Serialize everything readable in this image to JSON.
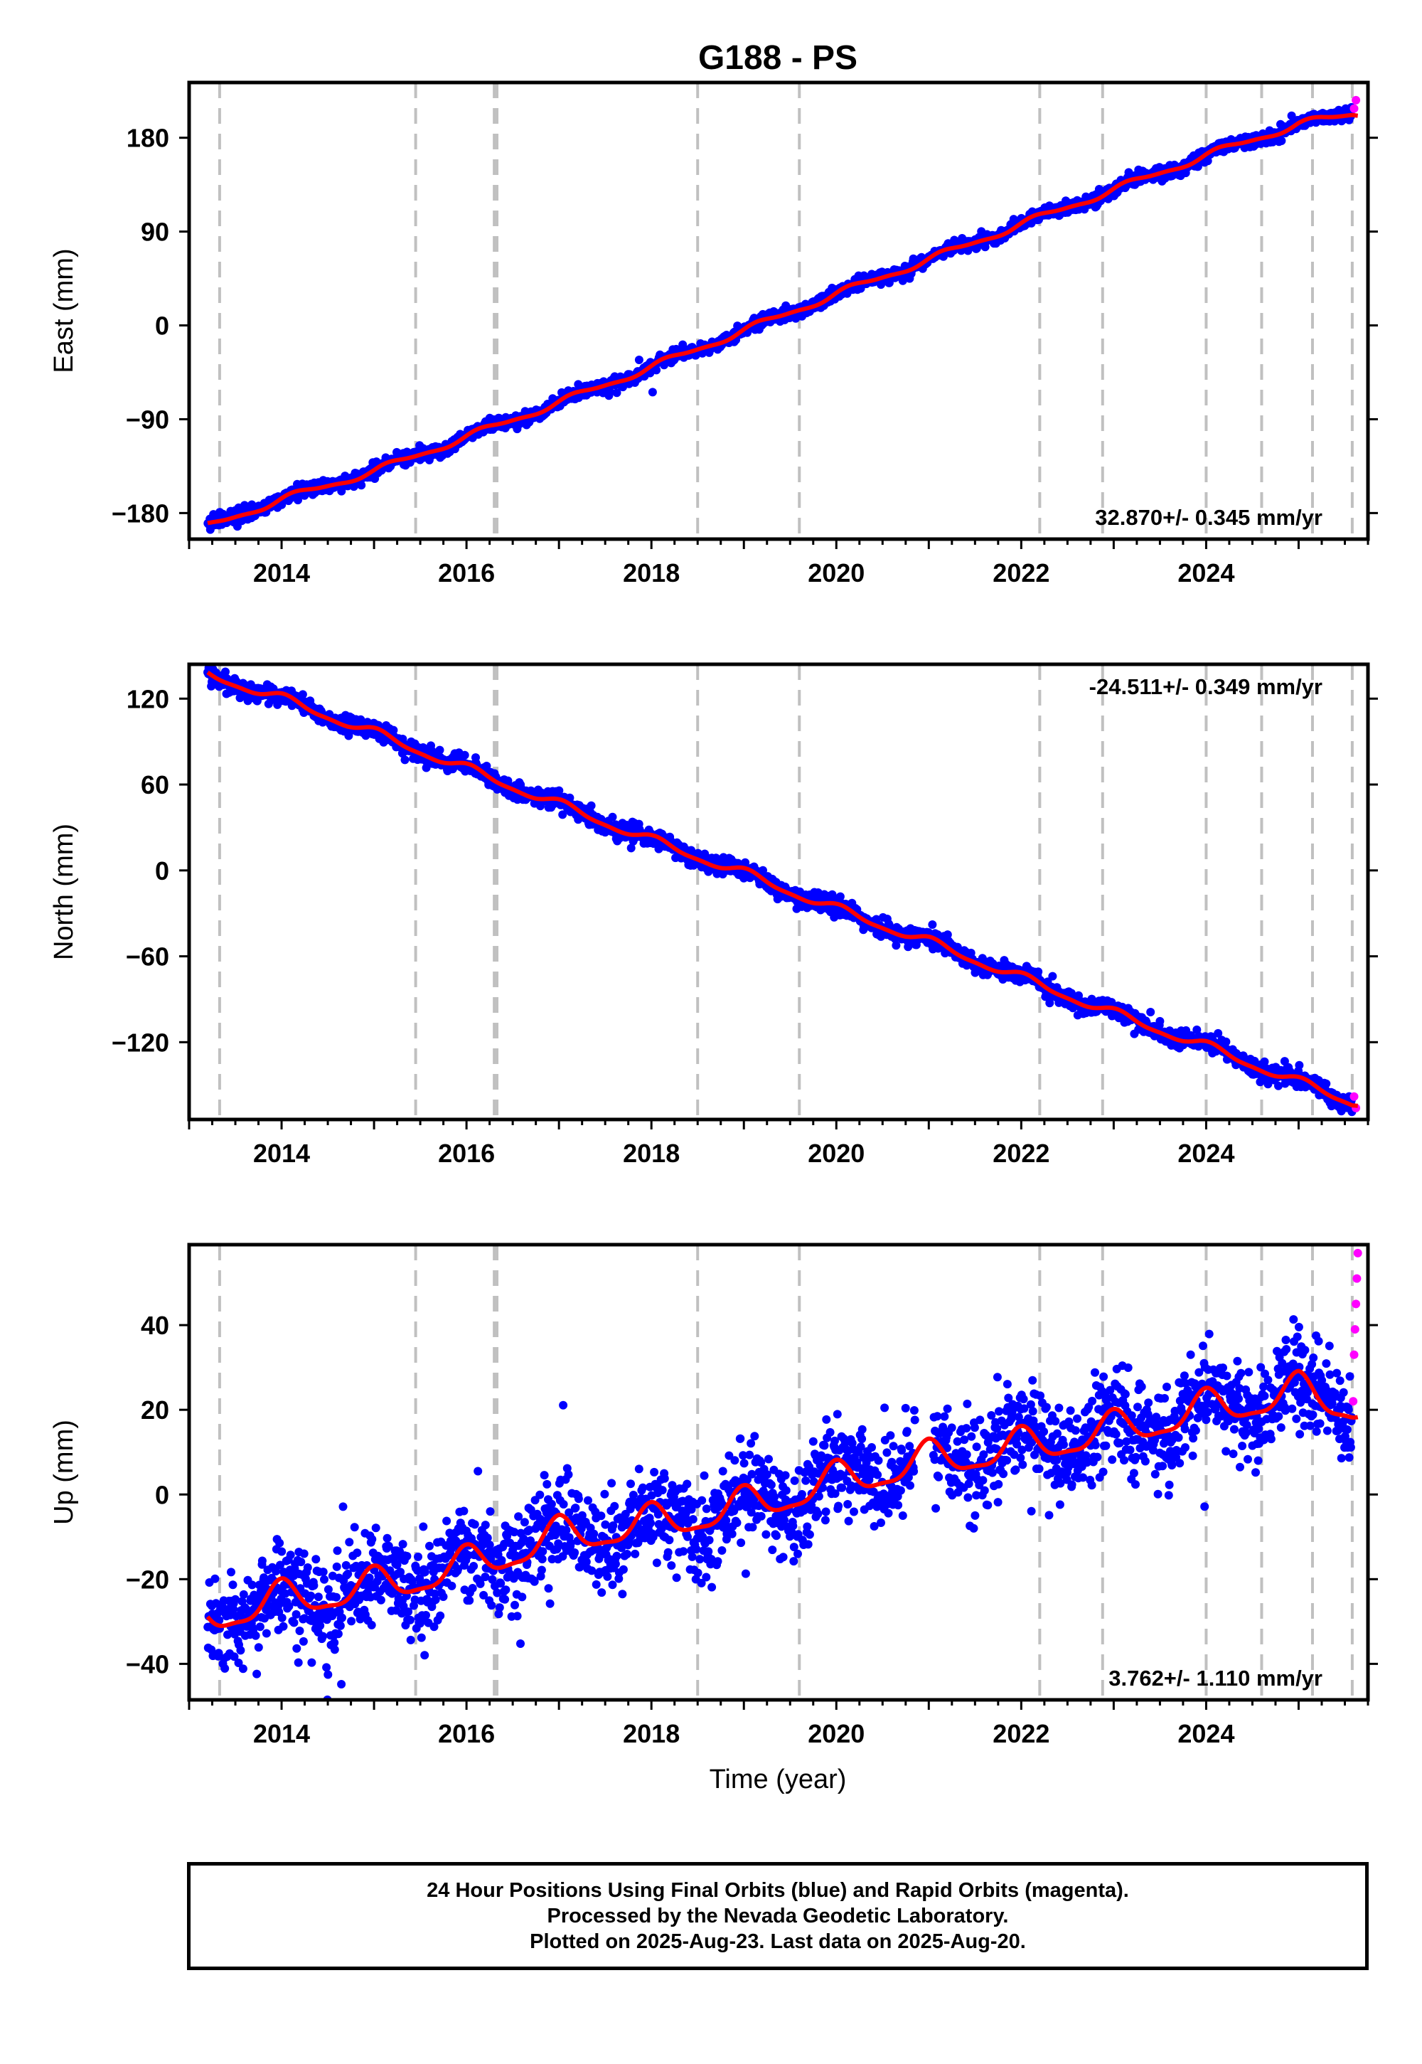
{
  "title": "G188 - PS",
  "xlabel": "Time (year)",
  "colors": {
    "final_orbits": "#0000ff",
    "rapid_orbits": "#ff00ff",
    "model_fit": "#ff0000",
    "event_lines": "#c0c0c0"
  },
  "footer": {
    "line1": "24 Hour Positions Using Final Orbits (blue) and Rapid Orbits (magenta).",
    "line2": "Processed by the Nevada Geodetic Laboratory.",
    "line3": "Plotted on 2025-Aug-23. Last data on 2025-Aug-20."
  },
  "chart_data": [
    {
      "type": "scatter",
      "ylabel": "East (mm)",
      "rate_label": "32.870+/- 0.345 mm/yr",
      "rate_label_position": "bottom-right",
      "x_ticks": [
        2014,
        2016,
        2018,
        2020,
        2022,
        2024
      ],
      "y_ticks": [
        -180,
        -90,
        0,
        90,
        180
      ],
      "xlim": [
        2013.0,
        2025.75
      ],
      "ylim": [
        -205,
        233
      ],
      "event_lines": [
        2013.33,
        2015.45,
        2016.3,
        2016.33,
        2018.5,
        2019.6,
        2022.2,
        2022.88,
        2024.0,
        2024.6,
        2025.15,
        2025.58
      ],
      "data_span": [
        2013.2,
        2025.58
      ],
      "rapid_span": [
        2025.58,
        2025.64
      ],
      "series": [
        {
          "name": "Final Orbits",
          "x": [
            2013.2,
            2014.0,
            2015.0,
            2016.0,
            2017.0,
            2018.0,
            2019.0,
            2020.0,
            2021.0,
            2022.0,
            2023.0,
            2024.0,
            2025.0,
            2025.58
          ],
          "y": [
            -193,
            -167,
            -140,
            -107,
            -74,
            -40,
            -5,
            30,
            63,
            97,
            130,
            163,
            193,
            203
          ]
        },
        {
          "name": "Rapid Orbits",
          "x": [
            2025.6,
            2025.62
          ],
          "y": [
            208,
            216
          ]
        }
      ],
      "fit": {
        "x": [
          2013.2,
          2025.64
        ],
        "y": [
          -193,
          206
        ],
        "annual_amplitude": 3,
        "semiannual_amplitude": 1,
        "annual_phase": 0.3
      },
      "scatter_sd": 3
    },
    {
      "type": "scatter",
      "ylabel": "North (mm)",
      "rate_label": "-24.511+/- 0.349 mm/yr",
      "rate_label_position": "top-right",
      "x_ticks": [
        2014,
        2016,
        2018,
        2020,
        2022,
        2024
      ],
      "y_ticks": [
        -120,
        -60,
        0,
        60,
        120
      ],
      "xlim": [
        2013.0,
        2025.75
      ],
      "ylim": [
        -174,
        144
      ],
      "event_lines": [
        2013.33,
        2015.45,
        2016.3,
        2016.33,
        2018.5,
        2019.6,
        2022.2,
        2022.88,
        2024.0,
        2024.6,
        2025.15,
        2025.58
      ],
      "data_span": [
        2013.2,
        2025.58
      ],
      "rapid_span": [
        2025.58,
        2025.64
      ],
      "series": [
        {
          "name": "Final Orbits",
          "x": [
            2013.2,
            2014.0,
            2015.0,
            2016.0,
            2017.0,
            2018.0,
            2019.0,
            2020.0,
            2021.0,
            2022.0,
            2023.0,
            2024.0,
            2025.0,
            2025.58
          ],
          "y": [
            137,
            120,
            96,
            71,
            46,
            21,
            -2,
            -27,
            -50,
            -75,
            -100,
            -123,
            -148,
            -162
          ]
        },
        {
          "name": "Rapid Orbits",
          "x": [
            2025.6,
            2025.62
          ],
          "y": [
            -158,
            -166
          ]
        }
      ],
      "fit": {
        "x": [
          2013.2,
          2025.64
        ],
        "y": [
          137,
          -164
        ],
        "annual_amplitude": 3,
        "semiannual_amplitude": 1,
        "annual_phase": 1.2
      },
      "scatter_sd": 3
    },
    {
      "type": "scatter",
      "ylabel": "Up (mm)",
      "rate_label": "3.762+/- 1.110 mm/yr",
      "rate_label_position": "bottom-right",
      "x_ticks": [
        2014,
        2016,
        2018,
        2020,
        2022,
        2024
      ],
      "y_ticks": [
        -40,
        -20,
        0,
        20,
        40
      ],
      "xlim": [
        2013.0,
        2025.75
      ],
      "ylim": [
        -48.5,
        59
      ],
      "event_lines": [
        2013.33,
        2015.45,
        2016.3,
        2016.33,
        2018.5,
        2019.6,
        2022.2,
        2022.88,
        2024.0,
        2024.6,
        2025.15,
        2025.58
      ],
      "data_span": [
        2013.2,
        2025.58
      ],
      "rapid_span": [
        2025.58,
        2025.64
      ],
      "series": [
        {
          "name": "Final Orbits",
          "x": [
            2013.2,
            2014.0,
            2015.0,
            2016.0,
            2017.0,
            2018.0,
            2019.0,
            2020.0,
            2021.0,
            2022.0,
            2023.0,
            2024.0,
            2025.0,
            2025.58
          ],
          "y": [
            -29,
            -25,
            -22,
            -17,
            -10,
            -7,
            -3,
            3,
            8,
            11,
            15,
            20,
            24,
            21
          ]
        },
        {
          "name": "Rapid Orbits",
          "x": [
            2025.59,
            2025.6,
            2025.61,
            2025.62,
            2025.63,
            2025.64
          ],
          "y": [
            22,
            33,
            39,
            45,
            51,
            57
          ]
        }
      ],
      "fit": {
        "x": [
          2013.2,
          2025.64
        ],
        "y": [
          -29,
          22
        ],
        "annual_amplitude": 4,
        "semiannual_amplitude": 1.2,
        "annual_phase": 1.6
      },
      "scatter_sd": 5.5
    }
  ]
}
